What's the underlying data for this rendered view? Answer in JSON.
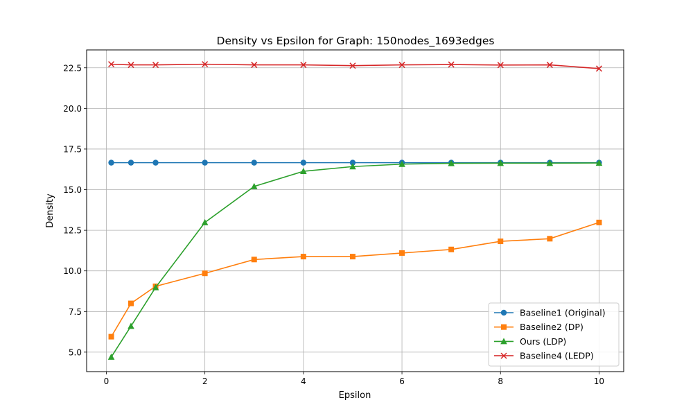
{
  "chart_data": {
    "type": "line",
    "title": "Density vs Epsilon for Graph: 150nodes_1693edges",
    "xlabel": "Epsilon",
    "ylabel": "Density",
    "xlim": [
      -0.4,
      10.5
    ],
    "ylim": [
      3.8,
      23.6
    ],
    "xticks": [
      0,
      2,
      4,
      6,
      8,
      10
    ],
    "yticks": [
      5.0,
      7.5,
      10.0,
      12.5,
      15.0,
      17.5,
      20.0,
      22.5
    ],
    "xtick_labels": [
      "0",
      "2",
      "4",
      "6",
      "8",
      "10"
    ],
    "ytick_labels": [
      "5.0",
      "7.5",
      "10.0",
      "12.5",
      "15.0",
      "17.5",
      "20.0",
      "22.5"
    ],
    "grid": true,
    "legend_position": "lower-right",
    "x": [
      0.1,
      0.5,
      1,
      2,
      3,
      4,
      5,
      6,
      7,
      8,
      9,
      10
    ],
    "series": [
      {
        "name": "Baseline1 (Original)",
        "color": "#1f77b4",
        "marker": "circle",
        "values": [
          16.66,
          16.66,
          16.66,
          16.66,
          16.66,
          16.66,
          16.66,
          16.66,
          16.66,
          16.66,
          16.66,
          16.66
        ]
      },
      {
        "name": "Baseline2 (DP)",
        "color": "#ff7f0e",
        "marker": "square",
        "values": [
          5.95,
          8.0,
          9.05,
          9.85,
          10.7,
          10.88,
          10.88,
          11.1,
          11.32,
          11.82,
          11.98,
          12.98
        ]
      },
      {
        "name": "Ours (LDP)",
        "color": "#2ca02c",
        "marker": "triangle",
        "values": [
          4.7,
          6.6,
          8.98,
          12.98,
          15.2,
          16.13,
          16.42,
          16.57,
          16.62,
          16.63,
          16.63,
          16.64
        ]
      },
      {
        "name": "Baseline4 (LEDP)",
        "color": "#d62728",
        "marker": "x",
        "values": [
          22.72,
          22.68,
          22.68,
          22.72,
          22.68,
          22.68,
          22.63,
          22.68,
          22.7,
          22.67,
          22.68,
          22.45
        ]
      }
    ]
  }
}
